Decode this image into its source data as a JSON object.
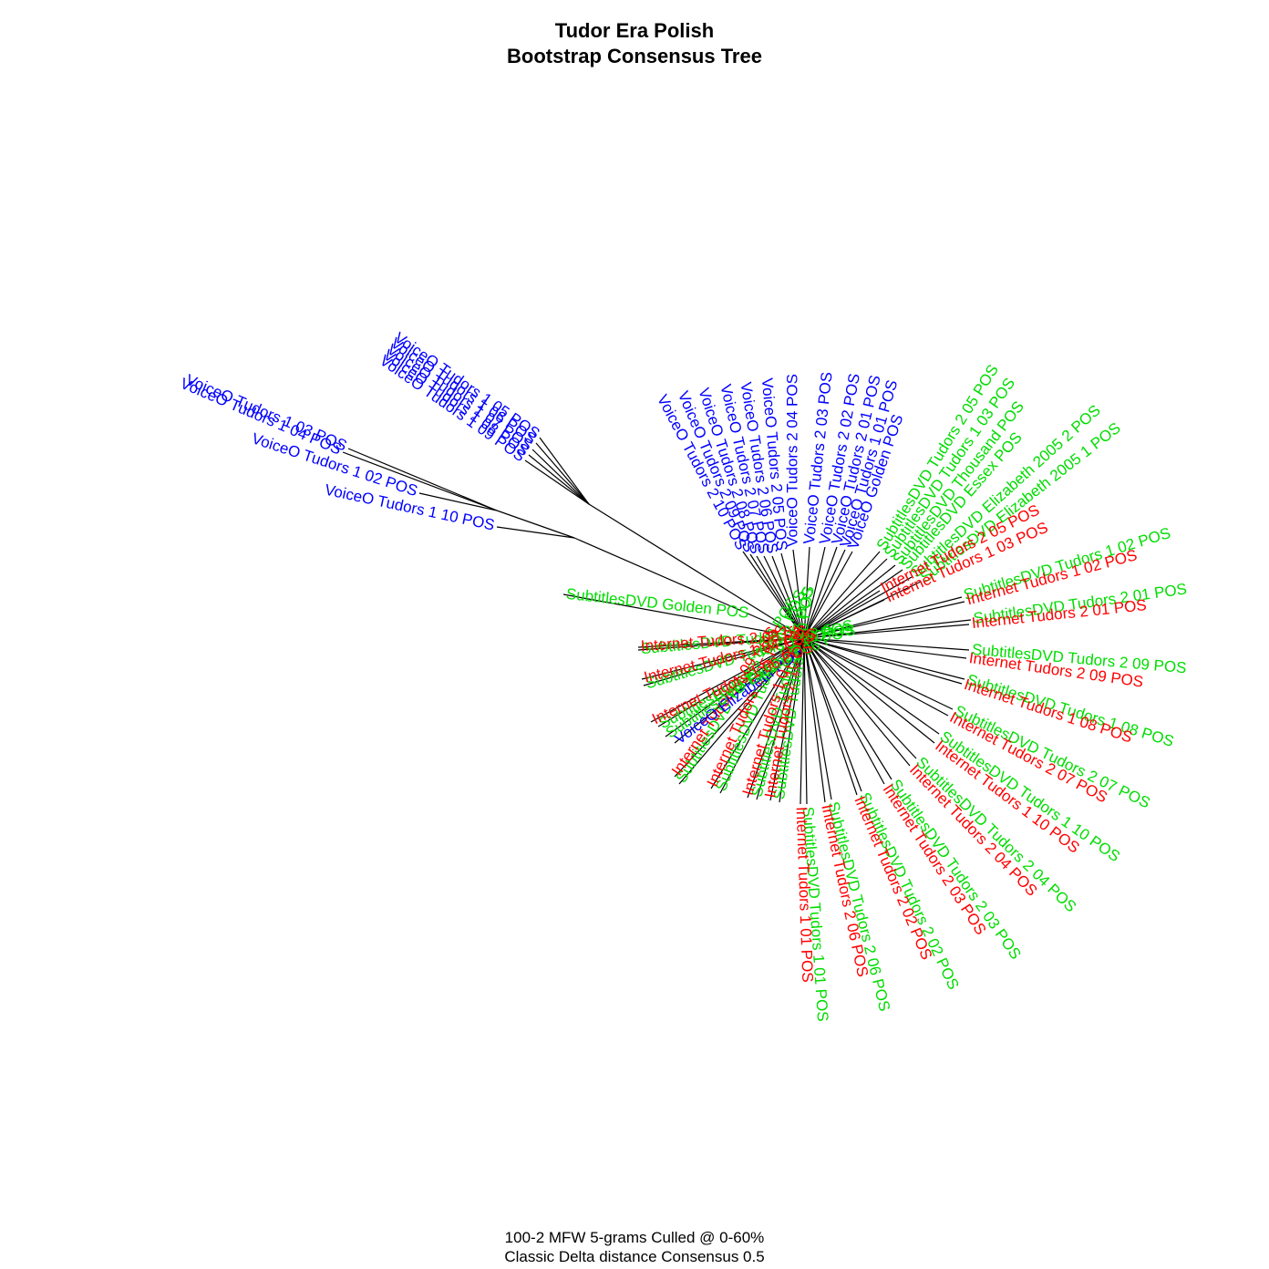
{
  "title_line1": "Tudor Era Polish",
  "title_line2": "Bootstrap Consensus Tree",
  "caption_line1": "100-2 MFW 5-grams Culled @ 0-60%",
  "caption_line2": "Classic Delta distance Consensus 0.5",
  "colors": {
    "voiceo": "#0000ff",
    "subtitles": "#00dd00",
    "internet": "#ff0000",
    "branch": "#000000"
  },
  "leaves": [
    {
      "label": "VoiceO Tudors 1 03 POS",
      "group": "voiceo"
    },
    {
      "label": "VoiceO Tudors 1 04 POS",
      "group": "voiceo"
    },
    {
      "label": "VoiceO Tudors 1 02 POS",
      "group": "voiceo"
    },
    {
      "label": "VoiceO Tudors 1 10 POS",
      "group": "voiceo"
    },
    {
      "label": "VoiceO Tudors 1 05 POS",
      "group": "voiceo"
    },
    {
      "label": "VoiceO Tudors 1 06 POS",
      "group": "voiceo"
    },
    {
      "label": "VoiceO Tudors 1 07 POS",
      "group": "voiceo"
    },
    {
      "label": "VoiceO Tudors 1 08 POS",
      "group": "voiceo"
    },
    {
      "label": "VoiceO Tudors 1 09 POS",
      "group": "voiceo"
    },
    {
      "label": "VoiceO Tudors 2 10 POS",
      "group": "voiceo"
    },
    {
      "label": "VoiceO Tudors 2 09 POS",
      "group": "voiceo"
    },
    {
      "label": "VoiceO Tudors 2 08 POS",
      "group": "voiceo"
    },
    {
      "label": "VoiceO Tudors 2 07 POS",
      "group": "voiceo"
    },
    {
      "label": "VoiceO Tudors 2 06 POS",
      "group": "voiceo"
    },
    {
      "label": "VoiceO Tudors 2 05 POS",
      "group": "voiceo"
    },
    {
      "label": "VoiceO Tudors 2 04 POS",
      "group": "voiceo"
    },
    {
      "label": "VoiceO Tudors 2 03 POS",
      "group": "voiceo"
    },
    {
      "label": "VoiceO Tudors 2 02 POS",
      "group": "voiceo"
    },
    {
      "label": "VoiceO Tudors 2 01 POS",
      "group": "voiceo"
    },
    {
      "label": "VoiceO Tudors 1 01 POS",
      "group": "voiceo"
    },
    {
      "label": "VoiceO Golden POS",
      "group": "voiceo"
    },
    {
      "label": "SubtitlesDVD Tudors 2 05 POS",
      "group": "subtitles"
    },
    {
      "label": "SubtitlesDVD Tudors 1 03 POS",
      "group": "subtitles"
    },
    {
      "label": "SubtitlesDVD Thousand POS",
      "group": "subtitles"
    },
    {
      "label": "SubtitlesDVD Essex POS",
      "group": "subtitles"
    },
    {
      "label": "SubtitlesDVD Elizabeth 2005 2 POS",
      "group": "subtitles"
    },
    {
      "label": "SubtitlesDVD Elizabeth 2005 1 POS",
      "group": "subtitles"
    },
    {
      "label": "Internet Tudors 2 05 POS",
      "group": "internet"
    },
    {
      "label": "Internet Tudors 1 03 POS",
      "group": "internet"
    },
    {
      "label": "SubtitlesDVD Tudors 1 02 POS",
      "group": "subtitles"
    },
    {
      "label": "Internet Tudors 1 02 POS",
      "group": "internet"
    },
    {
      "label": "SubtitlesDVD Tudors 2 01 POS",
      "group": "subtitles"
    },
    {
      "label": "Internet Tudors 2 01 POS",
      "group": "internet"
    },
    {
      "label": "SubtitlesDVD Tudors 2 09 POS",
      "group": "subtitles"
    },
    {
      "label": "Internet Tudors 2 09 POS",
      "group": "internet"
    },
    {
      "label": "SubtitlesDVD Tudors 1 08 POS",
      "group": "subtitles"
    },
    {
      "label": "Internet Tudors 1 08 POS",
      "group": "internet"
    },
    {
      "label": "SubtitlesDVD Tudors 2 07 POS",
      "group": "subtitles"
    },
    {
      "label": "Internet Tudors 2 07 POS",
      "group": "internet"
    },
    {
      "label": "SubtitlesDVD Tudors 1 10 POS",
      "group": "subtitles"
    },
    {
      "label": "Internet Tudors 1 10 POS",
      "group": "internet"
    },
    {
      "label": "SubtitlesDVD Tudors 2 04 POS",
      "group": "subtitles"
    },
    {
      "label": "Internet Tudors 2 04 POS",
      "group": "internet"
    },
    {
      "label": "SubtitlesDVD Tudors 2 03 POS",
      "group": "subtitles"
    },
    {
      "label": "Internet Tudors 2 03 POS",
      "group": "internet"
    },
    {
      "label": "SubtitlesDVD Tudors 2 02 POS",
      "group": "subtitles"
    },
    {
      "label": "Internet Tudors 2 02 POS",
      "group": "internet"
    },
    {
      "label": "SubtitlesDVD Tudors 2 06 POS",
      "group": "subtitles"
    },
    {
      "label": "Internet Tudors 2 06 POS",
      "group": "internet"
    },
    {
      "label": "SubtitlesDVD Tudors 1 01 POS",
      "group": "subtitles"
    },
    {
      "label": "Internet Tudors 1 01 POS",
      "group": "internet"
    },
    {
      "label": "SubtitlesDVD Tudors 2 10 POS",
      "group": "subtitles"
    },
    {
      "label": "Internet Tudors 2 10 POS",
      "group": "internet"
    },
    {
      "label": "SubtitlesDVD Tudors 1 07 POS",
      "group": "subtitles"
    },
    {
      "label": "Internet Tudors 1 07 POS",
      "group": "internet"
    },
    {
      "label": "SubtitlesDVD Tudors 1 05 POS",
      "group": "subtitles"
    },
    {
      "label": "Internet Tudors 1 05 POS",
      "group": "internet"
    },
    {
      "label": "SubtitlesDVD Tudors 1 09 POS",
      "group": "subtitles"
    },
    {
      "label": "Internet Tudors 1 09 POS",
      "group": "internet"
    },
    {
      "label": "VoiceO Elizabeth POS",
      "group": "voiceo"
    },
    {
      "label": "SubtitlesDVD Elizabeth POS",
      "group": "subtitles"
    },
    {
      "label": "SubtitlesDVD Tudors 1 06 POS",
      "group": "subtitles"
    },
    {
      "label": "Internet Tudors 1 06 POS",
      "group": "internet"
    },
    {
      "label": "SubtitlesDVD Tudors 1 04 POS",
      "group": "subtitles"
    },
    {
      "label": "Internet Tudors 1 04 POS",
      "group": "internet"
    },
    {
      "label": "SubtitlesDVD Tudors 2 08 POS",
      "group": "subtitles"
    },
    {
      "label": "Internet Tudors 2 08 POS",
      "group": "internet"
    },
    {
      "label": "SubtitlesDVD Golden POS",
      "group": "subtitles"
    }
  ]
}
